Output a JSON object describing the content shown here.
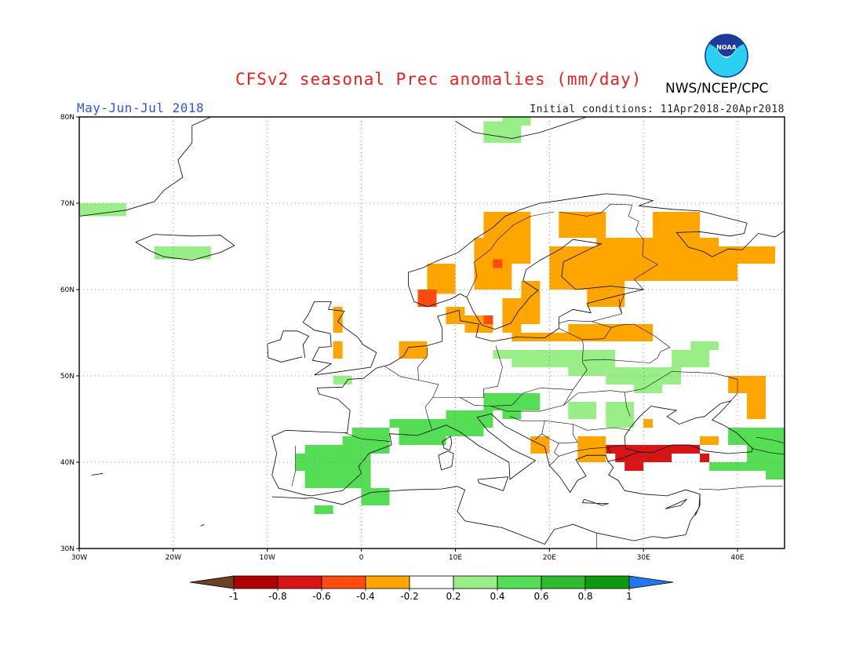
{
  "title": "CFSv2 seasonal Prec anomalies (mm/day)",
  "period": "May-Jun-Jul 2018",
  "initial_conditions": "Initial conditions: 11Apr2018-20Apr2018",
  "organization": "NWS/NCEP/CPC",
  "logo": {
    "text": "NOAA",
    "icon": "noaa-logo-icon"
  },
  "map": {
    "lon_range": [
      -30,
      45
    ],
    "lat_range": [
      30,
      80
    ],
    "lat_labels": [
      "80N",
      "70N",
      "60N",
      "50N",
      "40N",
      "30N"
    ],
    "lon_labels": [
      "30W",
      "20W",
      "10W",
      "0",
      "10E",
      "20E",
      "30E",
      "40E"
    ],
    "grid": true
  },
  "colorbar": {
    "labels": [
      "-1",
      "-0.8",
      "-0.6",
      "-0.4",
      "-0.2",
      "0.2",
      "0.4",
      "0.6",
      "0.8",
      "1"
    ],
    "colors": [
      "#6b4226",
      "#b00000",
      "#d81515",
      "#ff4b10",
      "#ffa500",
      "#ffffff",
      "#99ee88",
      "#55dd55",
      "#2fbb2f",
      "#109910",
      "#2277ee"
    ]
  },
  "anomaly_regions": [
    {
      "name": "Greenland",
      "class": "0.2 to 0.4",
      "color": "#99ee88"
    },
    {
      "name": "Iceland",
      "class": "0.2 to 0.4",
      "color": "#99ee88"
    },
    {
      "name": "Svalbard",
      "class": "0.2 to 0.4",
      "color": "#99ee88"
    },
    {
      "name": "Scandinavia",
      "class": "-0.4 to -0.2",
      "color": "#ffa500"
    },
    {
      "name": "Scandinavia core",
      "class": "-0.6 to -0.4",
      "color": "#ff4b10"
    },
    {
      "name": "Iberia",
      "class": "0.2 to 0.6",
      "color": "#55dd55"
    },
    {
      "name": "Alps",
      "class": "0.2 to 0.6",
      "color": "#55dd55"
    },
    {
      "name": "Central Europe",
      "class": "0.2 to 0.4",
      "color": "#99ee88"
    },
    {
      "name": "Turkey",
      "class": "-0.8 to -0.4",
      "color": "#d81515"
    },
    {
      "name": "Russia",
      "class": "-0.4 to -0.2",
      "color": "#ffa500"
    },
    {
      "name": "Caucasus",
      "class": "0.2 to 0.6",
      "color": "#55dd55"
    }
  ]
}
